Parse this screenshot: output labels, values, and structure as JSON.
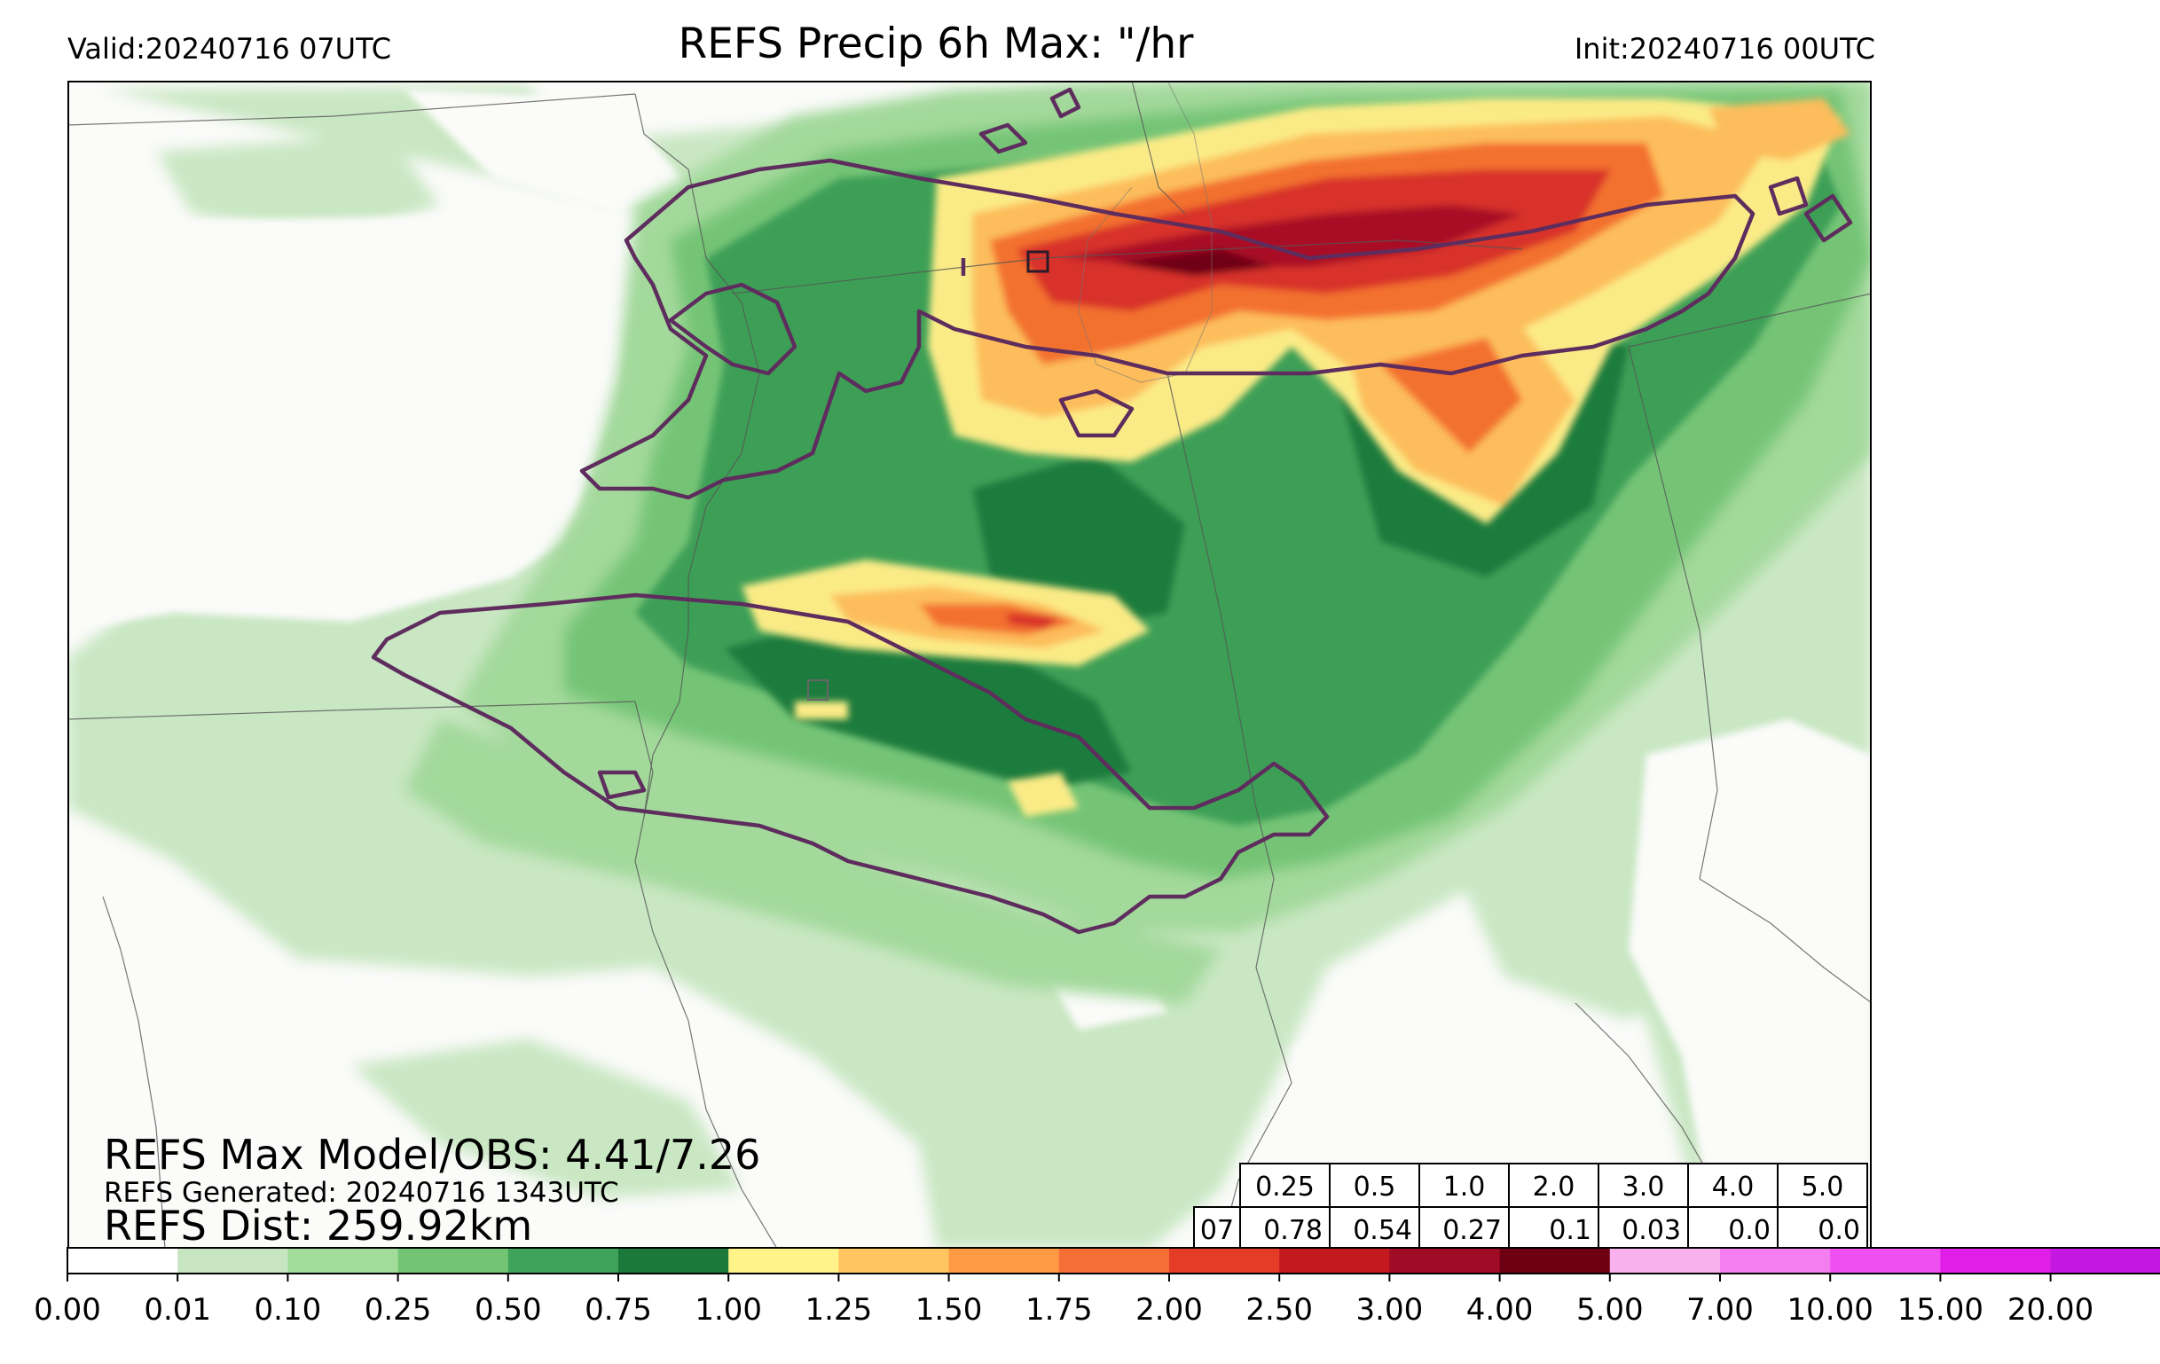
{
  "header": {
    "valid": "Valid:20240716 07UTC",
    "title": "REFS Precip 6h Max: \"/hr",
    "init": "Init:20240716 00UTC"
  },
  "annotations": {
    "max_model_obs": "REFS Max Model/OBS: 4.41/7.26",
    "generated": "REFS Generated: 20240716 1343UTC",
    "dist": "REFS Dist: 259.92km"
  },
  "stats_table": {
    "row_label": "07",
    "thresholds": [
      "0.25",
      "0.5",
      "1.0",
      "2.0",
      "3.0",
      "4.0",
      "5.0"
    ],
    "values": [
      "0.78",
      "0.54",
      "0.27",
      "0.1",
      "0.03",
      "0.0",
      "0.0"
    ]
  },
  "colorbar": {
    "ticks": [
      "0.00",
      "0.01",
      "0.10",
      "0.25",
      "0.50",
      "0.75",
      "1.00",
      "1.25",
      "1.50",
      "1.75",
      "2.00",
      "2.50",
      "3.00",
      "4.00",
      "5.00",
      "7.00",
      "10.00",
      "15.00",
      "20.00"
    ],
    "colors": [
      "#ffffff",
      "#c6e5c0",
      "#a1dc9a",
      "#74c476",
      "#3fa35b",
      "#1b7a3a",
      "#fff38a",
      "#fec561",
      "#fd9a43",
      "#f46f35",
      "#e53c28",
      "#c41a1f",
      "#a00b25",
      "#6e0013",
      "#f9b1ee",
      "#f47ef0",
      "#ef4ff0",
      "#e11ee8",
      "#c418e0",
      "#7e0aa9"
    ],
    "extend_color": "#5e0688"
  }
}
